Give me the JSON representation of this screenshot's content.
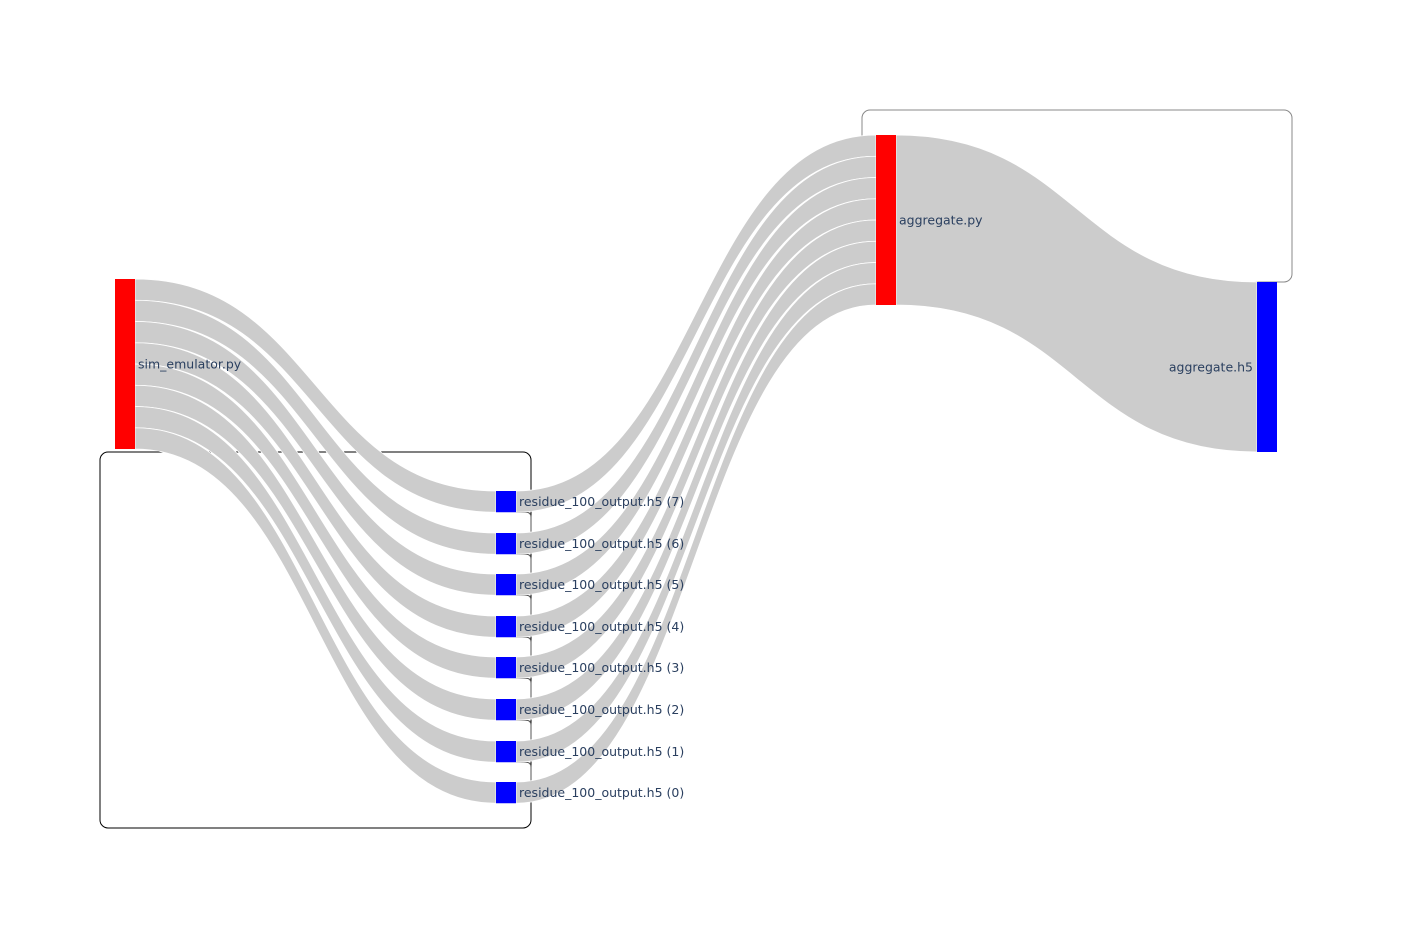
{
  "chart_data": {
    "type": "sankey",
    "nodes": [
      {
        "id": "sim",
        "label": "sim_emulator.py",
        "color": "#ff0000"
      },
      {
        "id": "r7",
        "label": "residue_100_output.h5 (7)",
        "color": "#0000ff"
      },
      {
        "id": "r6",
        "label": "residue_100_output.h5 (6)",
        "color": "#0000ff"
      },
      {
        "id": "r5",
        "label": "residue_100_output.h5 (5)",
        "color": "#0000ff"
      },
      {
        "id": "r4",
        "label": "residue_100_output.h5 (4)",
        "color": "#0000ff"
      },
      {
        "id": "r3",
        "label": "residue_100_output.h5 (3)",
        "color": "#0000ff"
      },
      {
        "id": "r2",
        "label": "residue_100_output.h5 (2)",
        "color": "#0000ff"
      },
      {
        "id": "r1",
        "label": "residue_100_output.h5 (1)",
        "color": "#0000ff"
      },
      {
        "id": "r0",
        "label": "residue_100_output.h5 (0)",
        "color": "#0000ff"
      },
      {
        "id": "agg",
        "label": "aggregate.py",
        "color": "#ff0000"
      },
      {
        "id": "aggh5",
        "label": "aggregate.h5",
        "color": "#0000ff"
      }
    ],
    "links": [
      {
        "source": "sim",
        "target": "r7",
        "value": 1
      },
      {
        "source": "sim",
        "target": "r6",
        "value": 1
      },
      {
        "source": "sim",
        "target": "r5",
        "value": 1
      },
      {
        "source": "sim",
        "target": "r4",
        "value": 1
      },
      {
        "source": "sim",
        "target": "r3",
        "value": 1
      },
      {
        "source": "sim",
        "target": "r2",
        "value": 1
      },
      {
        "source": "sim",
        "target": "r1",
        "value": 1
      },
      {
        "source": "sim",
        "target": "r0",
        "value": 1
      },
      {
        "source": "r7",
        "target": "agg",
        "value": 1
      },
      {
        "source": "r6",
        "target": "agg",
        "value": 1
      },
      {
        "source": "r5",
        "target": "agg",
        "value": 1
      },
      {
        "source": "r4",
        "target": "agg",
        "value": 1
      },
      {
        "source": "r3",
        "target": "agg",
        "value": 1
      },
      {
        "source": "r2",
        "target": "agg",
        "value": 1
      },
      {
        "source": "r1",
        "target": "agg",
        "value": 1
      },
      {
        "source": "r0",
        "target": "agg",
        "value": 1
      },
      {
        "source": "agg",
        "target": "aggh5",
        "value": 8
      }
    ],
    "link_color": "#cccccc"
  }
}
